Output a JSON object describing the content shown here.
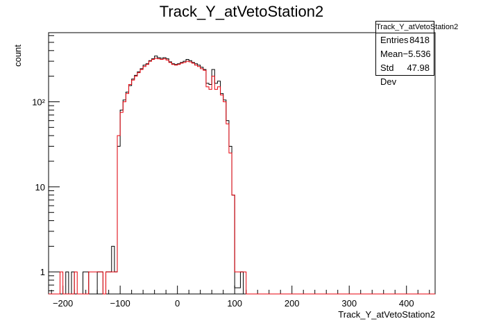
{
  "chart_data": {
    "type": "histogram",
    "title": "Track_Y_atVetoStation2",
    "xlabel": "Track_Y_atVetoStation2",
    "ylabel": "count",
    "xlim": [
      -225,
      450
    ],
    "ylim": [
      0.55,
      650
    ],
    "yscale": "log",
    "x_ticks": [
      -200,
      -100,
      0,
      100,
      200,
      300,
      400
    ],
    "y_tick_labels": [
      {
        "value": 1,
        "label": "1"
      },
      {
        "value": 10,
        "label": "10"
      },
      {
        "value": 100,
        "label": "10²"
      }
    ],
    "bin_width": 5,
    "bins_start": -225,
    "series": [
      {
        "color": "#000000",
        "points": [
          [
            -195,
            1
          ],
          [
            -185,
            1
          ],
          [
            -165,
            1
          ],
          [
            -160,
            1
          ],
          [
            -140,
            1
          ],
          [
            -135,
            1
          ],
          [
            -125,
            1
          ],
          [
            -120,
            1
          ],
          [
            -115,
            2
          ],
          [
            -110,
            1
          ],
          [
            -105,
            30
          ],
          [
            -100,
            80
          ],
          [
            -95,
            105
          ],
          [
            -90,
            130
          ],
          [
            -85,
            155
          ],
          [
            -80,
            185
          ],
          [
            -75,
            205
          ],
          [
            -70,
            225
          ],
          [
            -65,
            245
          ],
          [
            -60,
            270
          ],
          [
            -55,
            280
          ],
          [
            -50,
            305
          ],
          [
            -45,
            320
          ],
          [
            -40,
            345
          ],
          [
            -35,
            330
          ],
          [
            -30,
            325
          ],
          [
            -25,
            330
          ],
          [
            -20,
            320
          ],
          [
            -15,
            295
          ],
          [
            -10,
            280
          ],
          [
            -5,
            275
          ],
          [
            0,
            280
          ],
          [
            5,
            290
          ],
          [
            10,
            300
          ],
          [
            15,
            315
          ],
          [
            20,
            305
          ],
          [
            25,
            290
          ],
          [
            30,
            280
          ],
          [
            35,
            270
          ],
          [
            40,
            255
          ],
          [
            45,
            240
          ],
          [
            50,
            165
          ],
          [
            55,
            160
          ],
          [
            60,
            240
          ],
          [
            65,
            165
          ],
          [
            70,
            175
          ],
          [
            75,
            125
          ],
          [
            80,
            105
          ],
          [
            85,
            60
          ],
          [
            90,
            30
          ],
          [
            95,
            8
          ],
          [
            100,
            0.65
          ],
          [
            105,
            0.65
          ],
          [
            110,
            1
          ]
        ]
      },
      {
        "color": "#e8000b",
        "points": [
          [
            -205,
            1
          ],
          [
            -180,
            1
          ],
          [
            -155,
            1
          ],
          [
            -150,
            1
          ],
          [
            -145,
            1
          ],
          [
            -140,
            1
          ],
          [
            -135,
            1
          ],
          [
            -125,
            1
          ],
          [
            -120,
            1
          ],
          [
            -115,
            1
          ],
          [
            -110,
            1
          ],
          [
            -105,
            40
          ],
          [
            -100,
            75
          ],
          [
            -95,
            100
          ],
          [
            -90,
            125
          ],
          [
            -85,
            160
          ],
          [
            -80,
            180
          ],
          [
            -75,
            200
          ],
          [
            -70,
            220
          ],
          [
            -65,
            240
          ],
          [
            -60,
            260
          ],
          [
            -55,
            275
          ],
          [
            -50,
            300
          ],
          [
            -45,
            315
          ],
          [
            -40,
            325
          ],
          [
            -35,
            320
          ],
          [
            -30,
            315
          ],
          [
            -25,
            320
          ],
          [
            -20,
            310
          ],
          [
            -15,
            290
          ],
          [
            -10,
            275
          ],
          [
            -5,
            270
          ],
          [
            0,
            275
          ],
          [
            5,
            285
          ],
          [
            10,
            290
          ],
          [
            15,
            300
          ],
          [
            20,
            295
          ],
          [
            25,
            285
          ],
          [
            30,
            270
          ],
          [
            35,
            260
          ],
          [
            40,
            245
          ],
          [
            45,
            235
          ],
          [
            50,
            150
          ],
          [
            55,
            140
          ],
          [
            60,
            200
          ],
          [
            65,
            140
          ],
          [
            70,
            150
          ],
          [
            75,
            120
          ],
          [
            80,
            100
          ],
          [
            85,
            55
          ],
          [
            90,
            25
          ],
          [
            95,
            8
          ],
          [
            100,
            1
          ],
          [
            105,
            1
          ],
          [
            110,
            1
          ],
          [
            115,
            1
          ]
        ]
      }
    ],
    "stats": {
      "title": "Track_Y_atVetoStation2",
      "rows": [
        {
          "label": "Entries",
          "value": "8418"
        },
        {
          "label": "Mean",
          "value": "−5.536"
        },
        {
          "label": "Std Dev",
          "value": "47.98"
        }
      ]
    }
  }
}
